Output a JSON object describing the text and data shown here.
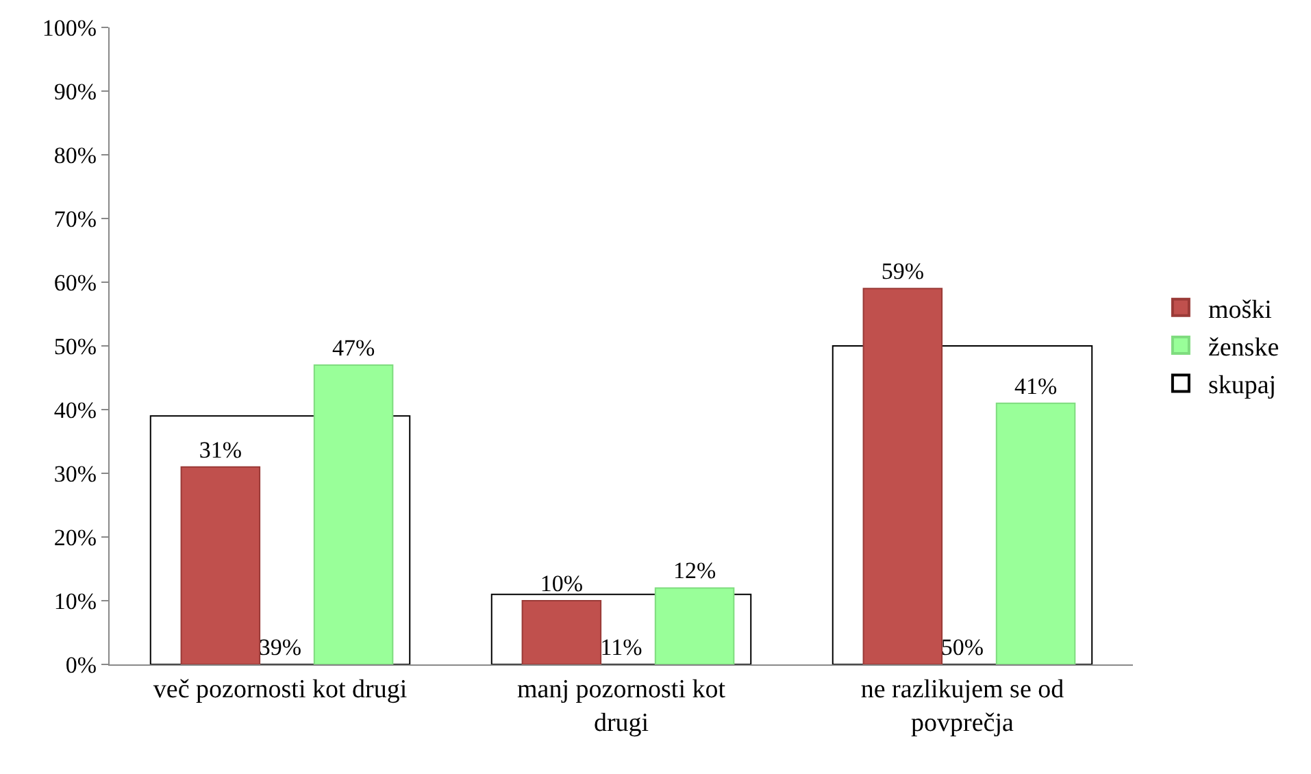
{
  "chart_data": {
    "type": "bar",
    "categories": [
      "več pozornosti kot drugi",
      "manj pozornosti kot drugi",
      "ne razlikujem se od povprečja"
    ],
    "series": [
      {
        "name": "moški",
        "color": "#c0504d",
        "values": [
          31,
          10,
          59
        ],
        "value_labels": [
          "31%",
          "10%",
          "59%"
        ]
      },
      {
        "name": "ženske",
        "color": "#99ff99",
        "values": [
          47,
          12,
          41
        ],
        "value_labels": [
          "47%",
          "12%",
          "41%"
        ]
      },
      {
        "name": "skupaj",
        "color": "#000000",
        "values": [
          39,
          11,
          50
        ],
        "value_labels": [
          "39%",
          "11%",
          "50%"
        ]
      }
    ],
    "ylim": [
      0,
      100
    ],
    "yticks": [
      {
        "value": 0,
        "label": "0%"
      },
      {
        "value": 10,
        "label": "10%"
      },
      {
        "value": 20,
        "label": "20%"
      },
      {
        "value": 30,
        "label": "30%"
      },
      {
        "value": 40,
        "label": "40%"
      },
      {
        "value": 50,
        "label": "50%"
      },
      {
        "value": 60,
        "label": "60%"
      },
      {
        "value": 70,
        "label": "70%"
      },
      {
        "value": 80,
        "label": "80%"
      },
      {
        "value": 90,
        "label": "90%"
      },
      {
        "value": 100,
        "label": "100%"
      }
    ],
    "legend": "right"
  }
}
